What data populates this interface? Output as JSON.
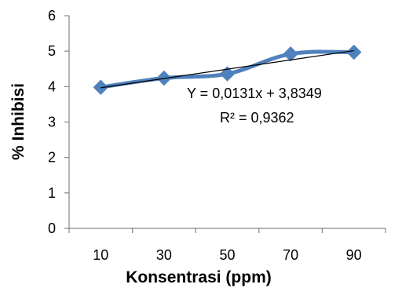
{
  "chart_data": {
    "type": "line",
    "title": "",
    "xlabel": "Konsentrasi (ppm)",
    "ylabel": "% Inhibisi",
    "categories": [
      "10",
      "30",
      "50",
      "70",
      "90"
    ],
    "x": [
      10,
      30,
      50,
      70,
      90
    ],
    "xlim": [
      0,
      100
    ],
    "ylim": [
      0,
      6
    ],
    "yticks": [
      "0",
      "1",
      "2",
      "3",
      "4",
      "5",
      "6"
    ],
    "grid": false,
    "legend": "none",
    "series": [
      {
        "values": [
          3.98,
          4.24,
          4.36,
          4.92,
          4.97
        ],
        "color": "#4F81BD",
        "marker": "diamond",
        "smooth": true
      }
    ],
    "trendline": {
      "type": "linear",
      "slope": 0.0131,
      "intercept": 3.8349,
      "color": "#000000",
      "equation": "Y = 0,0131x + 3,8349",
      "r_squared": "R² = 0,9362"
    }
  }
}
